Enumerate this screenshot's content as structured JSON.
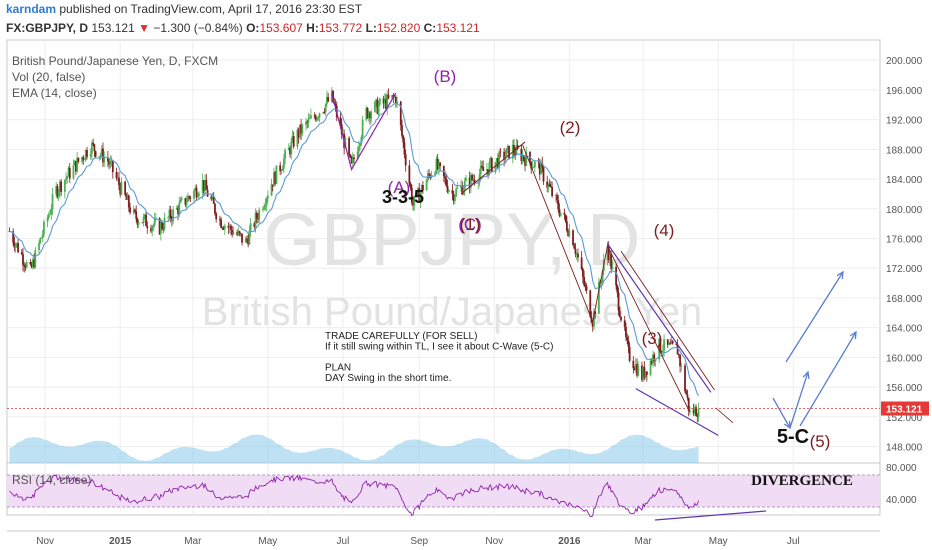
{
  "header": {
    "author": "karndam",
    "published_text": "published on TradingView.com, April 17, 2016 23:30 EST",
    "symbol": "FX:GBPJPY, D",
    "last": "153.121",
    "arrow": "▼",
    "change": "−1.300 (−0.84%)",
    "o_label": "O:",
    "o_value": "153.607",
    "h_label": "H:",
    "h_value": "153.772",
    "l_label": "L:",
    "l_value": "152.820",
    "c_label": "C:",
    "c_value": "153.121"
  },
  "legend": {
    "title": "British Pound/Japanese Yen, D, FXCM",
    "vol": "Vol (20, false)",
    "ema": "EMA (14, close)",
    "rsi": "RSI (14, close)"
  },
  "watermark": {
    "symbol": "GBPJPY, D",
    "name": "British Pound/Japanese Yen"
  },
  "annotations": {
    "wave_B": "(B)",
    "wave_A": "(A)",
    "pattern": "3-3-5",
    "wave_C_1": "(C)",
    "wave_1": "(1)",
    "wave_2": "(2)",
    "wave_3": "(3)",
    "wave_4": "(4)",
    "wave_5": "(5)",
    "label_5C": "5-C",
    "divergence": "DIVERGENCE",
    "note_lines": [
      "TRADE CAREFULLY (FOR SELL)",
      "If it still swing within TL, I see it about C-Wave (5-C)",
      "",
      "PLAN",
      "DAY Swing in the short time."
    ]
  },
  "colors": {
    "up": "#4caf50",
    "down": "#7a1e1e",
    "ema": "#5b9bd5",
    "volume": "#7ec3e8",
    "wave_purple": "#8e24aa",
    "wave_dark": "#7b1f1f",
    "arrow_blue": "#5b7fd0",
    "price_line": "#e53935",
    "rsi_fill": "#f1dcf5",
    "rsi_line": "#8e24aa"
  },
  "chart_data": {
    "type": "candlestick",
    "symbol": "GBPJPY",
    "timeframe": "D",
    "x_ticks": [
      "Nov",
      "2015",
      "Mar",
      "May",
      "Jul",
      "Sep",
      "Nov",
      "2016",
      "Mar",
      "May",
      "Jul"
    ],
    "y_ticks": [
      "200.000",
      "196.000",
      "192.000",
      "188.000",
      "184.000",
      "180.000",
      "176.000",
      "172.000",
      "168.000",
      "164.000",
      "160.000",
      "156.000",
      "152.000",
      "148.000"
    ],
    "ylim": [
      145,
      201
    ],
    "last_price": "153.121",
    "rsi_ticks": [
      "80.000",
      "40.000"
    ],
    "rsi_ylim": [
      20,
      85
    ],
    "approx_close_path": [
      {
        "date": "2014-10-03",
        "close": 177.0
      },
      {
        "date": "2014-10-20",
        "close": 171.5
      },
      {
        "date": "2014-11-10",
        "close": 182.5
      },
      {
        "date": "2014-12-08",
        "close": 188.5
      },
      {
        "date": "2014-12-22",
        "close": 186.5
      },
      {
        "date": "2015-01-12",
        "close": 179.0
      },
      {
        "date": "2015-02-02",
        "close": 177.5
      },
      {
        "date": "2015-03-09",
        "close": 183.5
      },
      {
        "date": "2015-03-23",
        "close": 178.5
      },
      {
        "date": "2015-04-13",
        "close": 175.5
      },
      {
        "date": "2015-05-04",
        "close": 183.5
      },
      {
        "date": "2015-05-25",
        "close": 190.0
      },
      {
        "date": "2015-06-22",
        "close": 195.0
      },
      {
        "date": "2015-07-08",
        "close": 185.5
      },
      {
        "date": "2015-07-20",
        "close": 193.0
      },
      {
        "date": "2015-08-13",
        "close": 195.0
      },
      {
        "date": "2015-08-27",
        "close": 180.5
      },
      {
        "date": "2015-09-14",
        "close": 186.0
      },
      {
        "date": "2015-09-28",
        "close": 182.0
      },
      {
        "date": "2015-11-16",
        "close": 188.0
      },
      {
        "date": "2015-12-08",
        "close": 185.5
      },
      {
        "date": "2016-01-04",
        "close": 176.0
      },
      {
        "date": "2016-01-20",
        "close": 165.0
      },
      {
        "date": "2016-02-01",
        "close": 175.0
      },
      {
        "date": "2016-02-18",
        "close": 160.5
      },
      {
        "date": "2016-02-29",
        "close": 157.5
      },
      {
        "date": "2016-03-14",
        "close": 161.5
      },
      {
        "date": "2016-03-29",
        "close": 161.0
      },
      {
        "date": "2016-04-08",
        "close": 152.5
      },
      {
        "date": "2016-04-15",
        "close": 153.121
      }
    ]
  }
}
